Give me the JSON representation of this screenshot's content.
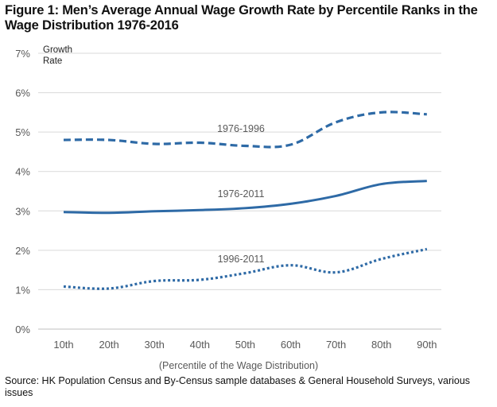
{
  "figure": {
    "title": "Figure 1: Men’s Average Annual Wage Growth Rate by Percentile Ranks in the Wage Distribution 1976-2016",
    "source": "Source: HK Population Census and By-Census sample databases & General Household Surveys, various issues"
  },
  "chart_data": {
    "type": "line",
    "ylabel_lines": [
      "Growth",
      "Rate"
    ],
    "xlabel": "(Percentile of the Wage Distribution)",
    "categories": [
      "10th",
      "20th",
      "30th",
      "40th",
      "50th",
      "60th",
      "70th",
      "80th",
      "90th"
    ],
    "ylim": [
      0,
      7
    ],
    "yticks": [
      "0%",
      "1%",
      "2%",
      "3%",
      "4%",
      "5%",
      "6%",
      "7%"
    ],
    "grid": true,
    "series": [
      {
        "name": "1976-1996",
        "style": "dashed",
        "color": "#2e6aa6",
        "values": [
          4.8,
          4.8,
          4.7,
          4.73,
          4.65,
          4.68,
          5.25,
          5.5,
          5.45
        ]
      },
      {
        "name": "1976-2011",
        "style": "solid",
        "color": "#2e6aa6",
        "values": [
          2.97,
          2.95,
          2.99,
          3.02,
          3.07,
          3.18,
          3.38,
          3.68,
          3.76
        ]
      },
      {
        "name": "1996-2011",
        "style": "dotted",
        "color": "#2e6aa6",
        "values": [
          1.08,
          1.03,
          1.22,
          1.25,
          1.42,
          1.62,
          1.44,
          1.78,
          2.03
        ]
      }
    ],
    "colors": {
      "line": "#2e6aa6",
      "grid": "#d9d9d9",
      "axis": "#bfbfbf",
      "text": "#595959"
    }
  }
}
